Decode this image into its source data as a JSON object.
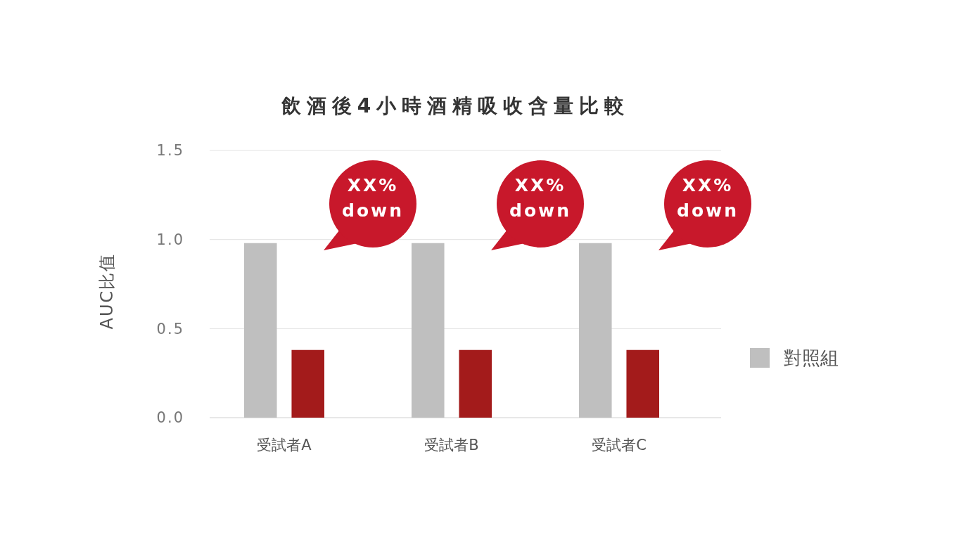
{
  "chart_data": {
    "type": "bar",
    "title": "飲酒後4小時酒精吸收含量比較",
    "ylabel": "AUC比值",
    "categories": [
      "受試者A",
      "受試者B",
      "受試者C"
    ],
    "series": [
      {
        "name": "對照組",
        "color": "#bfbfbf",
        "values": [
          0.98,
          0.98,
          0.98
        ]
      },
      {
        "color": "#a31b1b",
        "values": [
          0.38,
          0.38,
          0.38
        ]
      }
    ],
    "ylim": [
      0,
      1.5
    ],
    "yticks": [
      {
        "value": 0,
        "label": "0.0"
      },
      0.5,
      {
        "value": 1,
        "label": "1.0"
      },
      1.5
    ],
    "grid": "y",
    "legend": "right",
    "annotations": [
      "XX%\ndown",
      "XX%\ndown",
      "XX%\ndown"
    ]
  }
}
